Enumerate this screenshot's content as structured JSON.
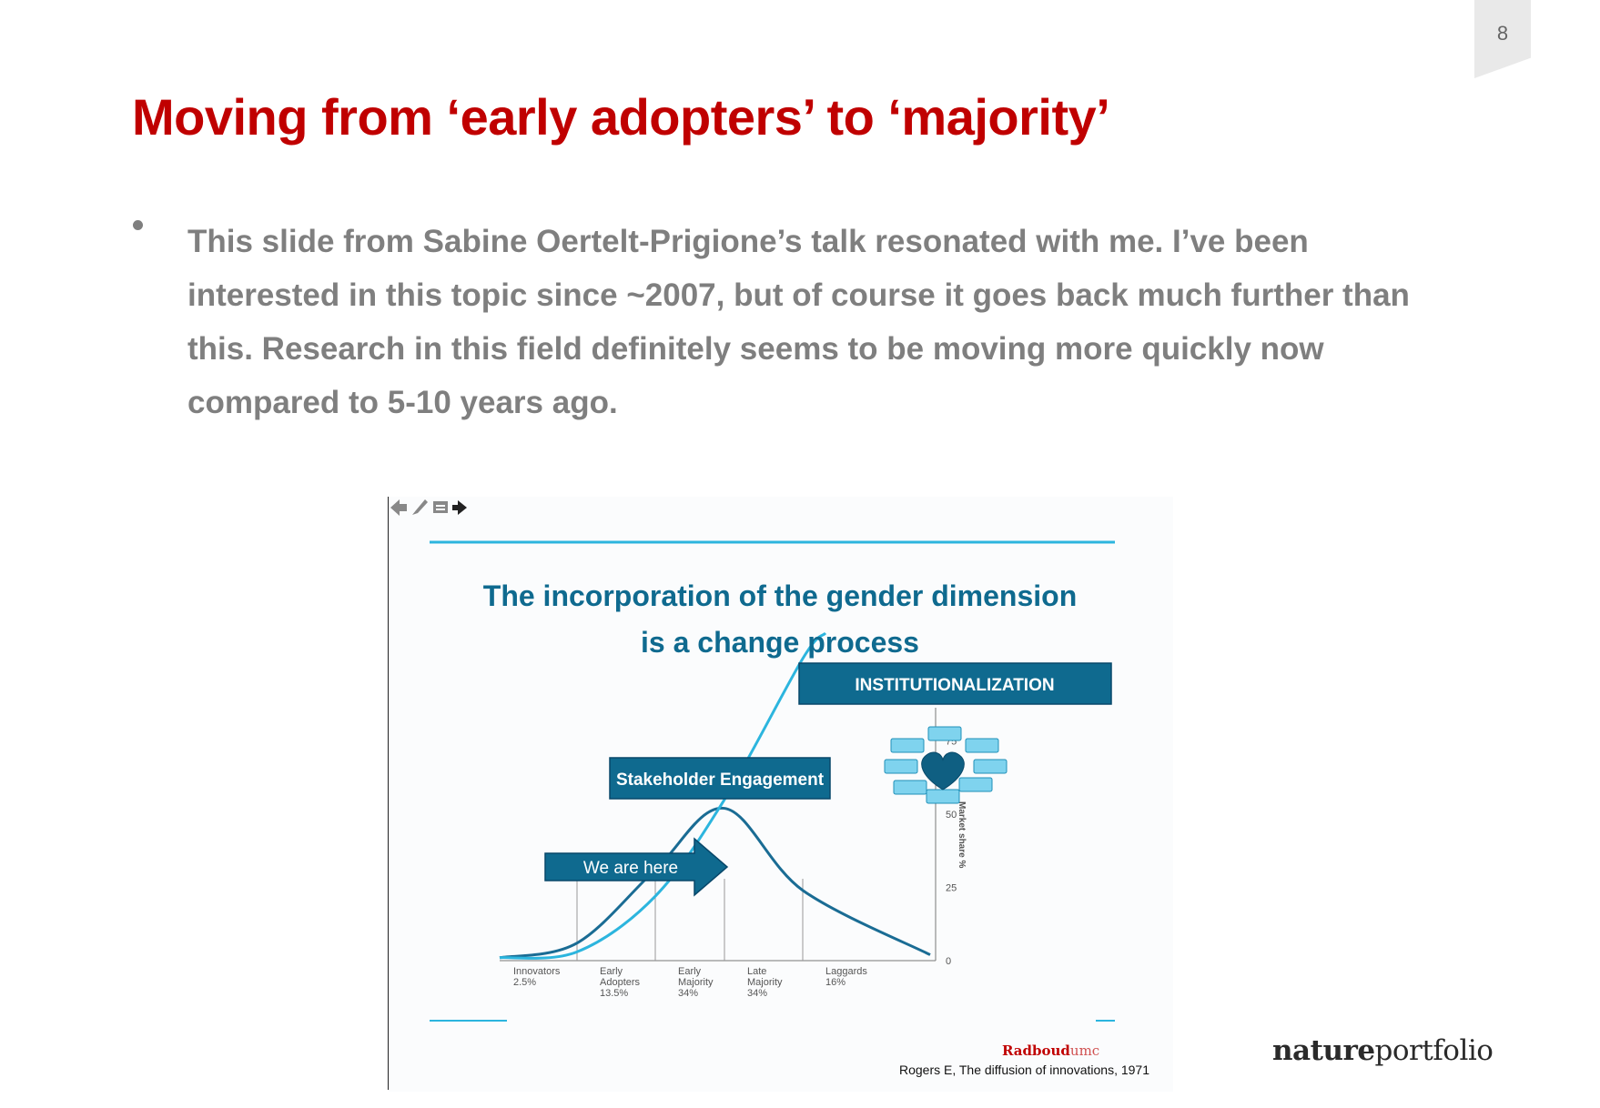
{
  "page": {
    "number": "8"
  },
  "title": "Moving from ‘early adopters’ to ‘majority’",
  "bullet": "This slide from Sabine Oertelt-Prigione’s talk resonated with me. I’ve been interested in this topic since ~2007, but of course it goes back much further than this. Research in this field definitely seems to be moving more quickly now compared to 5-10 years ago.",
  "embedded_slide": {
    "title_line1": "The incorporation of the gender dimension",
    "title_line2": "is a change process",
    "boxes": {
      "institutionalization": "INSTITUTIONALIZATION",
      "stakeholder": "Stakeholder Engagement",
      "here": "We are here"
    },
    "brand": {
      "a": "Radboud",
      "b": "umc"
    },
    "citation": "Rogers E, The diffusion of innovations, 1971",
    "colors": {
      "dark_teal": "#0f6a8f",
      "light_blue": "#2cb5de",
      "brand_red": "#c00000"
    }
  },
  "chart_data": {
    "type": "line",
    "ylabel": "Market share %",
    "ylim": [
      0,
      80
    ],
    "yticks": [
      "0",
      "25",
      "50",
      "75"
    ],
    "segments": [
      {
        "label": "Innovators",
        "share": "2.5%"
      },
      {
        "label": "Early Adopters",
        "share": "13.5%"
      },
      {
        "label": "Early Majority",
        "share": "34%"
      },
      {
        "label": "Late Majority",
        "share": "34%"
      },
      {
        "label": "Laggards",
        "share": "16%"
      }
    ],
    "series": [
      {
        "name": "",
        "color": "#1a6c94",
        "values": [
          1,
          6,
          31,
          52,
          24,
          2
        ]
      },
      {
        "name": "",
        "color": "#2cb5de",
        "values": [
          1,
          3,
          22,
          55,
          82,
          99
        ]
      }
    ]
  },
  "footer": {
    "brand_a": "nature",
    "brand_b": "portfolio"
  }
}
